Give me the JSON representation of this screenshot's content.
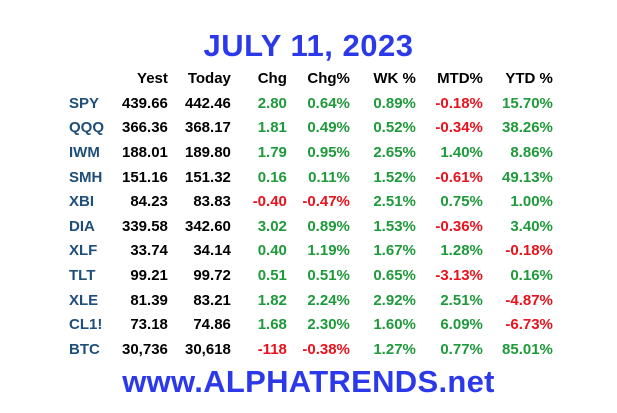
{
  "title": "JULY 11, 2023",
  "footer": "www.ALPHATRENDS.net",
  "colors": {
    "heading": "#2b39ea",
    "symbol": "#1f4e79",
    "positive": "#1e9a3a",
    "negative": "#e8121c"
  },
  "table": {
    "columns": [
      "",
      "Yest",
      "Today",
      "Chg",
      "Chg%",
      "WK %",
      "MTD%",
      "YTD %"
    ],
    "rows": [
      [
        "SPY",
        "439.66",
        "442.46",
        "2.80",
        "0.64%",
        "0.89%",
        "-0.18%",
        "15.70%"
      ],
      [
        "QQQ",
        "366.36",
        "368.17",
        "1.81",
        "0.49%",
        "0.52%",
        "-0.34%",
        "38.26%"
      ],
      [
        "IWM",
        "188.01",
        "189.80",
        "1.79",
        "0.95%",
        "2.65%",
        "1.40%",
        "8.86%"
      ],
      [
        "SMH",
        "151.16",
        "151.32",
        "0.16",
        "0.11%",
        "1.52%",
        "-0.61%",
        "49.13%"
      ],
      [
        "XBI",
        "84.23",
        "83.83",
        "-0.40",
        "-0.47%",
        "2.51%",
        "0.75%",
        "1.00%"
      ],
      [
        "DIA",
        "339.58",
        "342.60",
        "3.02",
        "0.89%",
        "1.53%",
        "-0.36%",
        "3.40%"
      ],
      [
        "XLF",
        "33.74",
        "34.14",
        "0.40",
        "1.19%",
        "1.67%",
        "1.28%",
        "-0.18%"
      ],
      [
        "TLT",
        "99.21",
        "99.72",
        "0.51",
        "0.51%",
        "0.65%",
        "-3.13%",
        "0.16%"
      ],
      [
        "XLE",
        "81.39",
        "83.21",
        "1.82",
        "2.24%",
        "2.92%",
        "2.51%",
        "-4.87%"
      ],
      [
        "CL1!",
        "73.18",
        "74.86",
        "1.68",
        "2.30%",
        "1.60%",
        "6.09%",
        "-6.73%"
      ],
      [
        "BTC",
        "30,736",
        "30,618",
        "-118",
        "-0.38%",
        "1.27%",
        "0.77%",
        "85.01%"
      ]
    ]
  }
}
